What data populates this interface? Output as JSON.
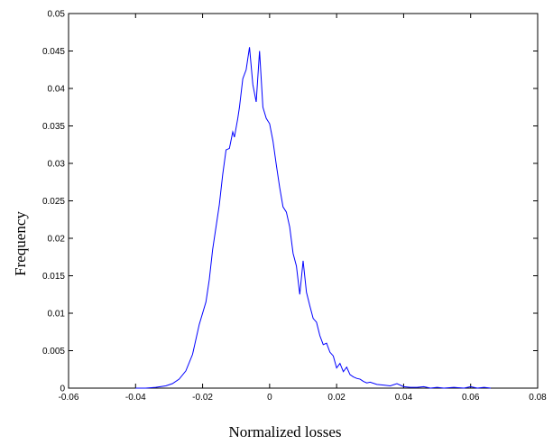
{
  "chart_data": {
    "type": "line",
    "xlabel": "Normalized losses",
    "ylabel": "Frequency",
    "xlim": [
      -0.06,
      0.08
    ],
    "ylim": [
      0,
      0.05
    ],
    "xticks": [
      "-0.06",
      "-0.04",
      "-0.02",
      "0",
      "0.02",
      "0.04",
      "0.06",
      "0.08"
    ],
    "yticks": [
      "0",
      "0.005",
      "0.01",
      "0.015",
      "0.02",
      "0.025",
      "0.03",
      "0.035",
      "0.04",
      "0.045",
      "0.05"
    ],
    "grid": false,
    "series": [
      {
        "color": "#0000ff",
        "x": [
          -0.04,
          -0.037,
          -0.034,
          -0.031,
          -0.029,
          -0.027,
          -0.025,
          -0.023,
          -0.021,
          -0.019,
          -0.018,
          -0.017,
          -0.016,
          -0.015,
          -0.014,
          -0.013,
          -0.012,
          -0.011,
          -0.0105,
          -0.0095,
          -0.009,
          -0.008,
          -0.007,
          -0.006,
          -0.005,
          -0.004,
          -0.003,
          -0.002,
          -0.001,
          0.0,
          0.001,
          0.002,
          0.003,
          0.004,
          0.005,
          0.006,
          0.007,
          0.008,
          0.009,
          0.01,
          0.011,
          0.012,
          0.013,
          0.014,
          0.015,
          0.016,
          0.017,
          0.018,
          0.019,
          0.02,
          0.021,
          0.022,
          0.023,
          0.024,
          0.025,
          0.026,
          0.027,
          0.028,
          0.029,
          0.03,
          0.032,
          0.034,
          0.036,
          0.038,
          0.04,
          0.042,
          0.044,
          0.046,
          0.048,
          0.05,
          0.052,
          0.055,
          0.058,
          0.06,
          0.062,
          0.064,
          0.066
        ],
        "y": [
          0.0,
          0.0,
          0.0001,
          0.0003,
          0.0006,
          0.0012,
          0.0023,
          0.0045,
          0.0085,
          0.0115,
          0.0145,
          0.0185,
          0.0215,
          0.0245,
          0.0285,
          0.0318,
          0.032,
          0.0342,
          0.0335,
          0.036,
          0.0375,
          0.0413,
          0.0425,
          0.0455,
          0.0405,
          0.0382,
          0.045,
          0.0375,
          0.036,
          0.0353,
          0.033,
          0.0298,
          0.0268,
          0.0242,
          0.0235,
          0.0215,
          0.018,
          0.0163,
          0.0125,
          0.017,
          0.0128,
          0.011,
          0.0093,
          0.0088,
          0.007,
          0.0058,
          0.006,
          0.0048,
          0.0043,
          0.0027,
          0.0033,
          0.0022,
          0.0028,
          0.0018,
          0.0015,
          0.0013,
          0.0012,
          0.0009,
          0.0007,
          0.0008,
          0.0005,
          0.0004,
          0.0003,
          0.0006,
          0.0002,
          0.0001,
          0.0001,
          0.0002,
          0.0,
          0.0001,
          0.0,
          0.0001,
          0.0,
          0.0002,
          0.0,
          0.0001,
          0.0
        ]
      }
    ]
  }
}
